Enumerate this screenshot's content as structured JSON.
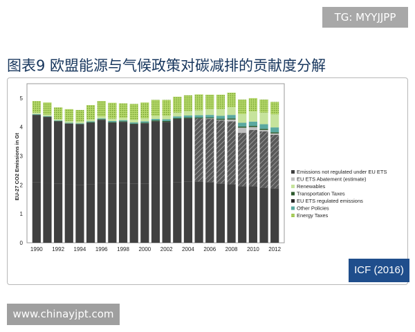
{
  "watermark_top": "TG: MYYJJPP",
  "heading": "图表9 欧盟能源与气候政策对碳减排的贡献度分解",
  "source": "ICF (2016)",
  "watermark_bottom": "www.chinayjpt.com",
  "colors": {
    "heading": "#17365d",
    "emissions_not_regulated": "#404040",
    "eu_ets_abatement": "#bfbfbf",
    "renewables": "#c6e39c",
    "transportation_taxes": "#2e5a2e",
    "eu_ets_regulated": "#404040",
    "other_policies": "#5aa9a0",
    "energy_taxes": "#aacd55",
    "source_box": "#1f4e8c"
  },
  "chart_data": {
    "type": "bar",
    "stacked": true,
    "ylabel": "EU-27 CO2 Emissions in Gt",
    "xlabel": "",
    "ylim": [
      0,
      5.5
    ],
    "yticks": [
      0,
      1,
      2,
      3,
      4,
      5
    ],
    "xtick_labels": [
      "1990",
      "1992",
      "1994",
      "1996",
      "1998",
      "2000",
      "2002",
      "2004",
      "2006",
      "2008",
      "2010",
      "2012"
    ],
    "grid": false,
    "legend_position": "right",
    "categories": [
      "1990",
      "1991",
      "1992",
      "1993",
      "1994",
      "1995",
      "1996",
      "1997",
      "1998",
      "1999",
      "2000",
      "2001",
      "2002",
      "2003",
      "2004",
      "2005",
      "2006",
      "2007",
      "2008",
      "2009",
      "2010",
      "2011",
      "2012"
    ],
    "series": [
      {
        "name": "Emissions not regulated under EU ETS",
        "key": "not_regulated",
        "values": [
          2.1,
          2.08,
          2.05,
          2.02,
          2.0,
          2.03,
          2.07,
          2.05,
          2.06,
          2.05,
          2.05,
          2.08,
          2.08,
          2.1,
          2.12,
          2.12,
          2.1,
          2.05,
          2.02,
          1.95,
          1.95,
          1.9,
          1.88
        ]
      },
      {
        "name": "EU ETS regulated emissions",
        "key": "regulated",
        "values": [
          2.32,
          2.27,
          2.15,
          2.1,
          2.1,
          2.12,
          2.18,
          2.1,
          2.12,
          2.05,
          2.08,
          2.12,
          2.1,
          2.18,
          2.18,
          2.18,
          2.18,
          2.18,
          2.18,
          1.85,
          1.95,
          1.95,
          1.85
        ]
      },
      {
        "name": "EU ETS Abatement (estimate)",
        "key": "abatement",
        "values": [
          0,
          0,
          0,
          0,
          0,
          0,
          0,
          0,
          0,
          0,
          0,
          0,
          0,
          0,
          0,
          0,
          0.02,
          0.02,
          0.06,
          0.18,
          0.1,
          0.05,
          0.05
        ]
      },
      {
        "name": "Transportation Taxes",
        "key": "transport",
        "values": [
          0.01,
          0.01,
          0.01,
          0.01,
          0.01,
          0.02,
          0.02,
          0.02,
          0.02,
          0.02,
          0.02,
          0.03,
          0.03,
          0.03,
          0.03,
          0.03,
          0.03,
          0.04,
          0.04,
          0.04,
          0.04,
          0.04,
          0.04
        ]
      },
      {
        "name": "Other Policies",
        "key": "other",
        "values": [
          0.02,
          0.02,
          0.02,
          0.02,
          0.02,
          0.03,
          0.03,
          0.04,
          0.04,
          0.04,
          0.05,
          0.05,
          0.06,
          0.06,
          0.07,
          0.08,
          0.09,
          0.1,
          0.12,
          0.13,
          0.15,
          0.16,
          0.17
        ]
      },
      {
        "name": "Renewables",
        "key": "renewables",
        "values": [
          0.05,
          0.05,
          0.05,
          0.06,
          0.06,
          0.07,
          0.07,
          0.08,
          0.08,
          0.09,
          0.1,
          0.11,
          0.12,
          0.13,
          0.15,
          0.17,
          0.2,
          0.23,
          0.27,
          0.3,
          0.35,
          0.4,
          0.45
        ]
      },
      {
        "name": "Energy Taxes",
        "key": "energy",
        "values": [
          0.4,
          0.42,
          0.4,
          0.41,
          0.4,
          0.49,
          0.53,
          0.55,
          0.5,
          0.55,
          0.55,
          0.55,
          0.55,
          0.55,
          0.55,
          0.55,
          0.5,
          0.5,
          0.5,
          0.5,
          0.46,
          0.45,
          0.43
        ]
      }
    ],
    "legend": [
      {
        "name": "Emissions not regulated under EU ETS",
        "key": "not_regulated"
      },
      {
        "name": "EU ETS Abatement (estimate)",
        "key": "abatement"
      },
      {
        "name": "Renewables",
        "key": "renewables"
      },
      {
        "name": "Transportation Taxes",
        "key": "transport"
      },
      {
        "name": "EU ETS regulated emissions",
        "key": "regulated"
      },
      {
        "name": "Other Policies",
        "key": "other"
      },
      {
        "name": "Energy Taxes",
        "key": "energy"
      }
    ]
  }
}
